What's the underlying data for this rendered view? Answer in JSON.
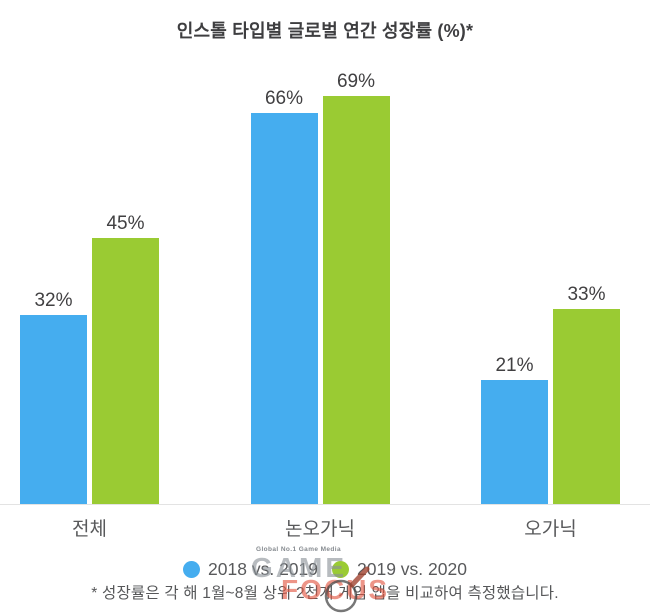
{
  "title": "인스톨 타입별 글로벌 연간 성장률 (%)*",
  "chart_data": {
    "type": "bar",
    "title": "인스톨 타입별 글로벌 연간 성장률 (%)*",
    "categories": [
      "전체",
      "논오가닉",
      "오가닉"
    ],
    "series": [
      {
        "name": "2018 vs. 2019",
        "color": "#45ADEF",
        "values": [
          32,
          66,
          21
        ]
      },
      {
        "name": "2019 vs. 2020",
        "color": "#9ACB33",
        "values": [
          45,
          69,
          33
        ]
      }
    ],
    "value_suffix": "%",
    "ylim": [
      0,
      75
    ],
    "grid": false,
    "legend_position": "bottom",
    "annotations": [
      "32%",
      "45%",
      "66%",
      "69%",
      "21%",
      "33%"
    ]
  },
  "footnote": "* 성장률은 각 해 1월~8월 상위 2천개 게임 앱을 비교하여 측정했습니다.",
  "watermark": {
    "tagline": "Global No.1 Game Media",
    "game": "GAME",
    "focus": "FOCUS"
  },
  "colors": {
    "blue": "#45ADEF",
    "green": "#9ACB33",
    "title_text": "#3E3E40",
    "value_text": "#414042",
    "label_text": "#58595B",
    "axis_line": "#E3E3E3",
    "watermark_gray": "#8A9198",
    "watermark_red": "#E2543F"
  }
}
